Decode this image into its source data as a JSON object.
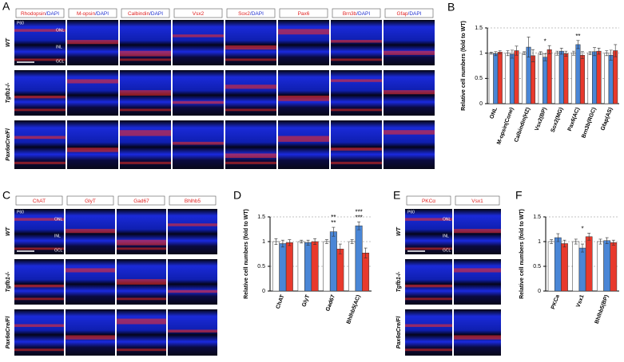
{
  "figure": {
    "panels": [
      {
        "letter": "A",
        "headers": [
          {
            "red": "Rhodopsin",
            "blue": "/DAPI"
          },
          {
            "red": "M-opsin",
            "blue": "/DAPI"
          },
          {
            "red": "Calbindin",
            "blue": "/DAPI"
          },
          {
            "red": "Vsx2"
          },
          {
            "red": "Sox2",
            "blue": "/DAPI"
          },
          {
            "red": "Pax6"
          },
          {
            "red": "Brn3b",
            "blue": "/DAPI"
          },
          {
            "red": "Gfap",
            "blue": "/DAPI"
          }
        ],
        "rows": [
          "WT",
          "Tgfb1-/-",
          "Pax6αCre/Fl"
        ],
        "notes": [
          "P60",
          "ONL",
          "INL",
          "GCL"
        ]
      },
      {
        "letter": "C",
        "headers": [
          {
            "red": "ChAT"
          },
          {
            "red": "GlyT"
          },
          {
            "red": "Gad67"
          },
          {
            "red": "Bhlhb5"
          }
        ],
        "rows": [
          "WT",
          "Tgfb1-/-",
          "Pax6αCre/Fl"
        ],
        "notes": [
          "P60",
          "ONL",
          "INL",
          "GCL"
        ]
      },
      {
        "letter": "E",
        "headers": [
          {
            "red": "PKCα"
          },
          {
            "red": "Vsx1"
          }
        ],
        "rows": [
          "WT",
          "Tgfb1-/-",
          "Pax6αCre/Fl"
        ],
        "notes": [
          "P60",
          "ONL",
          "INL",
          "GCL"
        ]
      }
    ]
  },
  "chart_data": [
    {
      "type": "bar",
      "panel": "B",
      "y_label": "Relative cell numbers (fold to WT)",
      "categories": [
        "ONL",
        "M-opsin(Cone)",
        "Calbindin(HZ)",
        "Vsx2(BP)",
        "Sox2(MG)",
        "Pax6(AC)",
        "Brn3b(RGC)",
        "Gfap(AS)"
      ],
      "series": [
        {
          "color": "#ffffff",
          "values": [
            1,
            1,
            1,
            1,
            1,
            1,
            1,
            1
          ],
          "errors": [
            0.02,
            0.05,
            0.03,
            0.03,
            0.04,
            0.04,
            0.03,
            0.05
          ]
        },
        {
          "color": "#4a86d6",
          "values": [
            0.99,
            0.98,
            1.12,
            0.92,
            1.04,
            1.17,
            1.03,
            0.96
          ],
          "errors": [
            0.04,
            0.08,
            0.2,
            0.07,
            0.06,
            0.08,
            0.08,
            0.1
          ]
        },
        {
          "color": "#e8392c",
          "values": [
            1.02,
            1.05,
            0.95,
            1.07,
            0.99,
            0.96,
            1.04,
            1.05
          ],
          "errors": [
            0.03,
            0.09,
            0.12,
            0.08,
            0.05,
            0.07,
            0.06,
            0.12
          ]
        }
      ],
      "ylim": [
        0,
        1.5
      ],
      "yticks": [
        0,
        0.5,
        1,
        1.5
      ],
      "grid": true,
      "annotations": [
        {
          "text": "*",
          "category": "Vsx2(BP)"
        },
        {
          "text": "**",
          "category": "Pax6(AC)"
        }
      ]
    },
    {
      "type": "bar",
      "panel": "D",
      "y_label": "Relative cell numbers (fold to WT)",
      "categories": [
        "ChAT",
        "GlyT",
        "Gad67",
        "Bhlhb5(AC)"
      ],
      "series": [
        {
          "color": "#ffffff",
          "values": [
            1,
            1,
            1,
            1
          ],
          "errors": [
            0.06,
            0.03,
            0.04,
            0.04
          ]
        },
        {
          "color": "#4a86d6",
          "values": [
            0.96,
            0.98,
            1.2,
            1.32
          ],
          "errors": [
            0.07,
            0.05,
            0.09,
            0.08
          ]
        },
        {
          "color": "#e8392c",
          "values": [
            0.98,
            1.0,
            0.85,
            0.77
          ],
          "errors": [
            0.06,
            0.06,
            0.1,
            0.1
          ]
        }
      ],
      "ylim": [
        0,
        1.5
      ],
      "yticks": [
        0,
        0.5,
        1,
        1.5
      ],
      "grid": true,
      "annotations": [
        {
          "text": "**",
          "category": "Gad67"
        },
        {
          "text": "**",
          "category": "Gad67"
        },
        {
          "text": "***",
          "category": "Bhlhb5(AC)"
        },
        {
          "text": "***",
          "category": "Bhlhb5(AC)"
        }
      ]
    },
    {
      "type": "bar",
      "panel": "F",
      "y_label": "Relative cell numbers (fold to WT)",
      "categories": [
        "PKCa",
        "Vsx1",
        "Bhlhb5(BP)"
      ],
      "series": [
        {
          "color": "#ffffff",
          "values": [
            1,
            1,
            1
          ],
          "errors": [
            0.04,
            0.05,
            0.05
          ]
        },
        {
          "color": "#4a86d6",
          "values": [
            1.08,
            0.87,
            1.02
          ],
          "errors": [
            0.08,
            0.08,
            0.06
          ]
        },
        {
          "color": "#e8392c",
          "values": [
            0.96,
            1.1,
            0.98
          ],
          "errors": [
            0.07,
            0.07,
            0.05
          ]
        }
      ],
      "ylim": [
        0,
        1.5
      ],
      "yticks": [
        0,
        0.5,
        1,
        1.5
      ],
      "grid": true,
      "annotations": [
        {
          "text": "*",
          "category": "Vsx1"
        }
      ]
    }
  ]
}
